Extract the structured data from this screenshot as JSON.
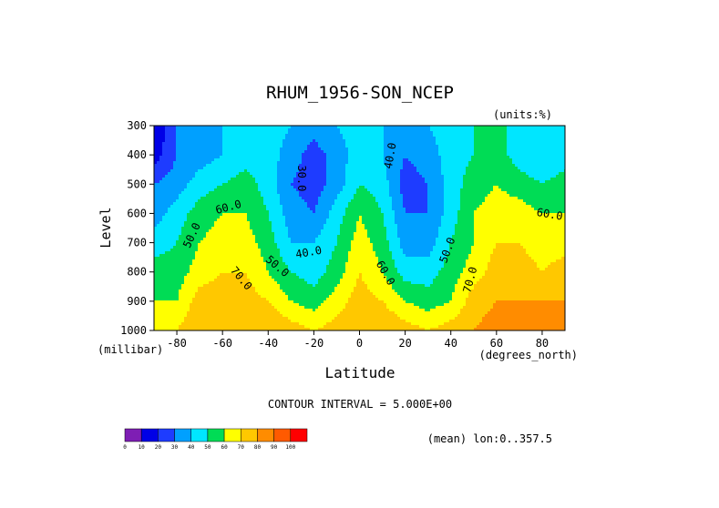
{
  "chart_data": {
    "type": "heatmap",
    "title": "RHUM_1956-SON_NCEP",
    "units_label": "(units:%)",
    "xlabel": "Latitude",
    "x_units": "(degrees_north)",
    "ylabel": "Level",
    "y_units": "(millibar)",
    "xlim": [
      -90,
      90
    ],
    "ylim": [
      1000,
      300
    ],
    "x_ticks": [
      -80,
      -60,
      -40,
      -20,
      0,
      20,
      40,
      60,
      80
    ],
    "y_ticks": [
      300,
      400,
      500,
      600,
      700,
      800,
      900,
      1000
    ],
    "grid": false,
    "contour_interval_text": "CONTOUR INTERVAL = 5.000E+00",
    "footer_text": "(mean) lon:0..357.5",
    "contour_labels": [
      "30.0",
      "40.0",
      "50.0",
      "60.0",
      "70.0"
    ],
    "colorbar": {
      "levels": [
        0,
        10,
        20,
        30,
        40,
        50,
        60,
        70,
        80,
        90,
        100
      ],
      "colors": [
        "#7e1eb4",
        "#0000e6",
        "#1e3cff",
        "#00a0ff",
        "#00e6ff",
        "#00dc55",
        "#ffff00",
        "#ffc800",
        "#ff8c00",
        "#ff5a00",
        "#ff0000"
      ]
    },
    "x": [
      -90,
      -80,
      -70,
      -60,
      -50,
      -40,
      -30,
      -20,
      -10,
      0,
      10,
      20,
      30,
      40,
      50,
      60,
      70,
      80,
      90
    ],
    "y": [
      300,
      400,
      500,
      600,
      700,
      800,
      900,
      1000
    ],
    "z": [
      [
        10,
        30,
        35,
        40,
        40,
        45,
        40,
        35,
        40,
        45,
        40,
        40,
        40,
        45,
        50,
        55,
        45,
        40,
        45
      ],
      [
        15,
        30,
        35,
        40,
        45,
        45,
        35,
        25,
        35,
        45,
        40,
        30,
        35,
        45,
        50,
        55,
        45,
        40,
        45
      ],
      [
        30,
        35,
        45,
        50,
        55,
        45,
        30,
        25,
        35,
        50,
        45,
        25,
        30,
        45,
        55,
        60,
        55,
        50,
        55
      ],
      [
        35,
        45,
        55,
        60,
        60,
        50,
        35,
        30,
        45,
        60,
        50,
        30,
        30,
        45,
        60,
        65,
        65,
        60,
        60
      ],
      [
        45,
        50,
        60,
        65,
        65,
        55,
        40,
        40,
        50,
        65,
        55,
        35,
        35,
        50,
        60,
        70,
        70,
        65,
        65
      ],
      [
        55,
        55,
        65,
        70,
        70,
        60,
        50,
        45,
        55,
        70,
        60,
        45,
        45,
        55,
        65,
        75,
        75,
        70,
        75
      ],
      [
        60,
        60,
        75,
        75,
        75,
        70,
        60,
        55,
        65,
        75,
        70,
        60,
        55,
        60,
        75,
        80,
        80,
        80,
        80
      ],
      [
        65,
        70,
        80,
        80,
        80,
        80,
        75,
        70,
        75,
        80,
        80,
        75,
        70,
        75,
        80,
        85,
        85,
        85,
        85
      ]
    ]
  }
}
